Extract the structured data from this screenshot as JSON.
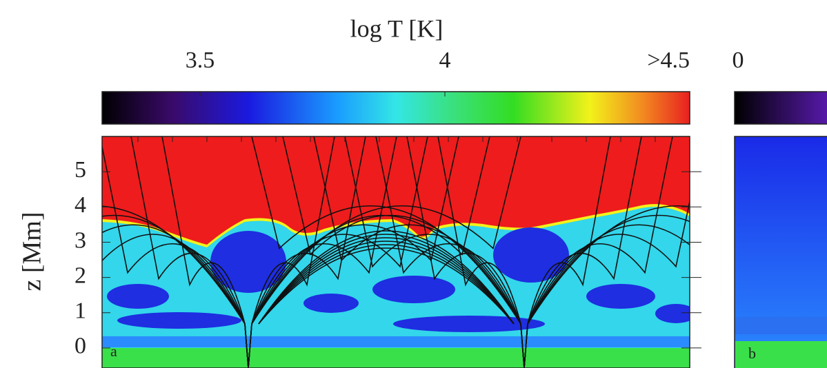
{
  "chart_data": [
    {
      "type": "heatmap",
      "colorbar_label": "log T [K]",
      "clim": [
        3.3,
        4.5
      ],
      "colorbar_ticks": [
        3.5,
        4,
        {
          "value": 4.5,
          "label": ">4.5"
        }
      ],
      "ylabel": "z [Mm]",
      "ylim": [
        -0.5,
        6
      ],
      "yticks": [
        0,
        1,
        2,
        3,
        4,
        5
      ],
      "panel_label": "a"
    },
    {
      "type": "heatmap",
      "colorbar_ticks": [
        0
      ],
      "panel_label": "b"
    }
  ]
}
